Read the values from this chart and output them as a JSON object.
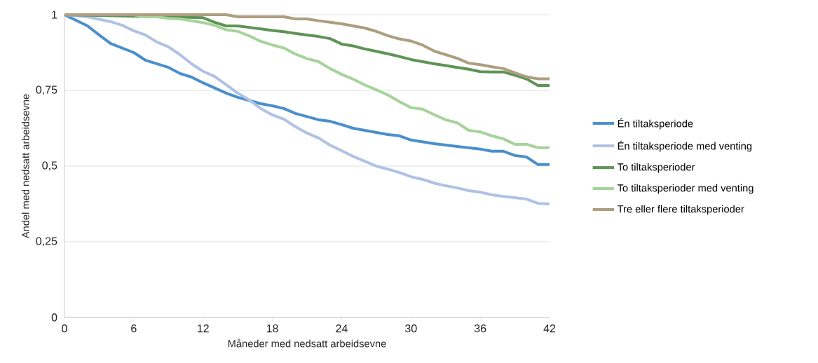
{
  "chart_data": {
    "type": "line",
    "xlabel": "Måneder med nedsatt arbeidsevne",
    "ylabel": "Andel med nedsatt arbeidsevne",
    "xlim": [
      0,
      42
    ],
    "xticks": [
      0,
      6,
      12,
      18,
      24,
      30,
      36,
      42
    ],
    "ylim": [
      0,
      1
    ],
    "yticks": [
      0,
      {
        "value": 0.25,
        "label": "0,25"
      },
      {
        "value": 0.5,
        "label": "0,5"
      },
      {
        "value": 0.75,
        "label": "0,75"
      },
      1
    ],
    "grid": "y",
    "legend": "right",
    "marker": "none",
    "line_style": "solid",
    "series": [
      {
        "name": "Én tiltaksperiode",
        "color": "#4a8fcc",
        "x": [
          0,
          2,
          3,
          4,
          6,
          7,
          9,
          10,
          11,
          12,
          14,
          15,
          17,
          18,
          19,
          20,
          22,
          23,
          24,
          25,
          26,
          28,
          29,
          30,
          32,
          34,
          36,
          37,
          38,
          39,
          40,
          41,
          42
        ],
        "values": [
          1.0,
          0.963,
          0.933,
          0.905,
          0.875,
          0.85,
          0.826,
          0.806,
          0.794,
          0.775,
          0.741,
          0.727,
          0.706,
          0.699,
          0.69,
          0.674,
          0.653,
          0.648,
          0.637,
          0.625,
          0.618,
          0.604,
          0.6,
          0.586,
          0.574,
          0.565,
          0.556,
          0.549,
          0.549,
          0.535,
          0.53,
          0.505,
          0.505
        ]
      },
      {
        "name": "Én tiltaksperiode med venting",
        "color": "#b0c2e4",
        "x": [
          0,
          2,
          4,
          5,
          6,
          7,
          8,
          9,
          10,
          11,
          12,
          13,
          14,
          15,
          16,
          17,
          18,
          19,
          20,
          21,
          22,
          23,
          24,
          25,
          26,
          27,
          28,
          29,
          30,
          31,
          32,
          33,
          34,
          35,
          36,
          37,
          38,
          40,
          41,
          42
        ],
        "values": [
          1.0,
          0.993,
          0.977,
          0.965,
          0.947,
          0.933,
          0.91,
          0.894,
          0.868,
          0.838,
          0.813,
          0.796,
          0.769,
          0.741,
          0.718,
          0.69,
          0.669,
          0.655,
          0.63,
          0.609,
          0.593,
          0.569,
          0.551,
          0.532,
          0.516,
          0.5,
          0.49,
          0.479,
          0.465,
          0.456,
          0.444,
          0.435,
          0.428,
          0.419,
          0.414,
          0.405,
          0.4,
          0.391,
          0.377,
          0.375
        ]
      },
      {
        "name": "To tiltaksperioder",
        "color": "#5e9456",
        "x": [
          0,
          12,
          13,
          14,
          15,
          16,
          17,
          18,
          19,
          20,
          21,
          22,
          23,
          24,
          25,
          26,
          27,
          28,
          29,
          30,
          31,
          32,
          33,
          34,
          35,
          36,
          37,
          38,
          39,
          40,
          41,
          42
        ],
        "values": [
          1.0,
          0.99,
          0.975,
          0.963,
          0.963,
          0.958,
          0.953,
          0.948,
          0.944,
          0.938,
          0.933,
          0.928,
          0.921,
          0.903,
          0.897,
          0.887,
          0.879,
          0.871,
          0.862,
          0.852,
          0.845,
          0.838,
          0.832,
          0.826,
          0.82,
          0.812,
          0.811,
          0.811,
          0.8,
          0.788,
          0.766,
          0.766
        ]
      },
      {
        "name": "To tiltaksperioder med venting",
        "color": "#a6d39b",
        "x": [
          0,
          6,
          7,
          8,
          9,
          10,
          11,
          12,
          13,
          14,
          15,
          16,
          17,
          18,
          19,
          20,
          21,
          22,
          23,
          24,
          25,
          26,
          27,
          28,
          29,
          30,
          31,
          32,
          33,
          34,
          35,
          36,
          37,
          38,
          39,
          40,
          41,
          42
        ],
        "values": [
          1.0,
          1.0,
          0.993,
          0.993,
          0.988,
          0.986,
          0.98,
          0.974,
          0.965,
          0.95,
          0.945,
          0.93,
          0.912,
          0.9,
          0.89,
          0.87,
          0.855,
          0.845,
          0.822,
          0.803,
          0.787,
          0.768,
          0.752,
          0.735,
          0.713,
          0.693,
          0.688,
          0.67,
          0.653,
          0.643,
          0.618,
          0.613,
          0.6,
          0.59,
          0.572,
          0.572,
          0.561,
          0.561
        ]
      },
      {
        "name": "Tre eller flere tiltaksperioder",
        "color": "#ad9e80",
        "x": [
          0,
          14,
          15,
          16,
          18,
          19,
          20,
          21,
          22,
          23,
          24,
          25,
          26,
          27,
          28,
          29,
          30,
          31,
          32,
          33,
          34,
          35,
          36,
          37,
          38,
          39,
          40,
          41,
          42
        ],
        "values": [
          1.0,
          1.0,
          0.993,
          0.993,
          0.993,
          0.993,
          0.986,
          0.986,
          0.98,
          0.975,
          0.97,
          0.963,
          0.956,
          0.945,
          0.931,
          0.92,
          0.913,
          0.9,
          0.88,
          0.868,
          0.856,
          0.84,
          0.835,
          0.828,
          0.822,
          0.808,
          0.795,
          0.788,
          0.788
        ]
      }
    ]
  }
}
